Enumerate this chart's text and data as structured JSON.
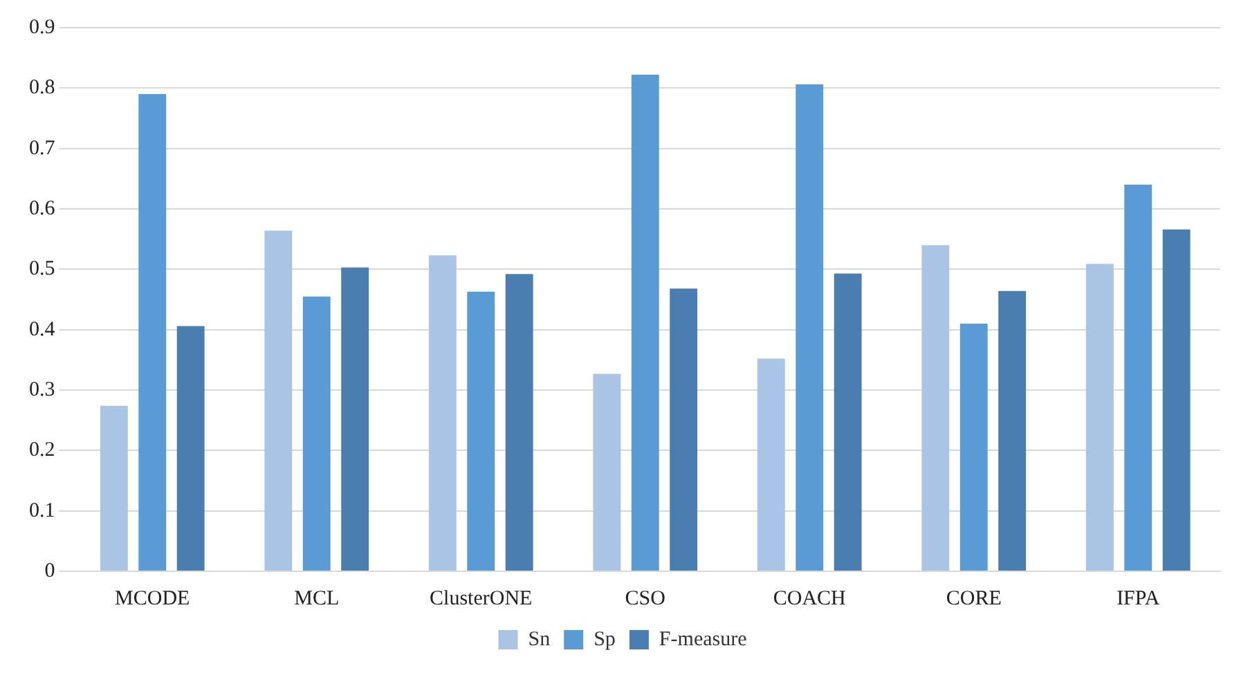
{
  "chart_data": {
    "type": "bar",
    "categories": [
      "MCODE",
      "MCL",
      "ClusterONE",
      "CSO",
      "COACH",
      "CORE",
      "IFPA"
    ],
    "series": [
      {
        "name": "Sn",
        "color": "#a9c4e4",
        "values": [
          0.274,
          0.564,
          0.523,
          0.327,
          0.352,
          0.54,
          0.509
        ]
      },
      {
        "name": "Sp",
        "color": "#5b9bd5",
        "values": [
          0.79,
          0.455,
          0.463,
          0.822,
          0.806,
          0.41,
          0.64
        ]
      },
      {
        "name": "F-measure",
        "color": "#4a7eb0",
        "values": [
          0.406,
          0.503,
          0.492,
          0.468,
          0.493,
          0.464,
          0.566
        ]
      }
    ],
    "ylim": [
      0,
      0.9
    ],
    "yticks": [
      0,
      0.1,
      0.2,
      0.3,
      0.4,
      0.5,
      0.6,
      0.7,
      0.8,
      0.9
    ],
    "grid": "y",
    "legend": "bottom"
  }
}
